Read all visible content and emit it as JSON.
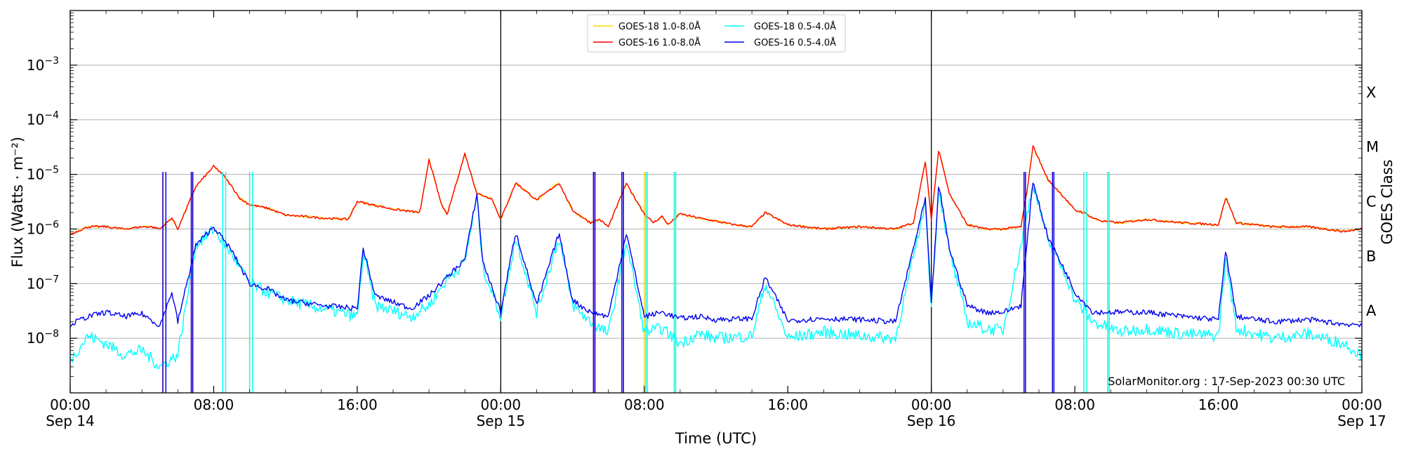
{
  "chart_data": {
    "type": "line",
    "xlabel": "Time (UTC)",
    "ylabel": "Flux (Watts · m⁻²)",
    "y2label": "GOES Class",
    "yscale": "log",
    "xlim": [
      "2023-09-14T00:00",
      "2023-09-17T00:00"
    ],
    "ylim": [
      1e-09,
      0.01
    ],
    "grid": "horizontal",
    "legend_position": "top-center",
    "day_markers": [
      "2023-09-15T00:00",
      "2023-09-16T00:00"
    ],
    "x_ticks": [
      {
        "t": "2023-09-14T00:00",
        "line1": "00:00",
        "line2": "Sep 14"
      },
      {
        "t": "2023-09-14T08:00",
        "line1": "08:00",
        "line2": ""
      },
      {
        "t": "2023-09-14T16:00",
        "line1": "16:00",
        "line2": ""
      },
      {
        "t": "2023-09-15T00:00",
        "line1": "00:00",
        "line2": "Sep 15"
      },
      {
        "t": "2023-09-15T08:00",
        "line1": "08:00",
        "line2": ""
      },
      {
        "t": "2023-09-15T16:00",
        "line1": "16:00",
        "line2": ""
      },
      {
        "t": "2023-09-16T00:00",
        "line1": "00:00",
        "line2": "Sep 16"
      },
      {
        "t": "2023-09-16T08:00",
        "line1": "08:00",
        "line2": ""
      },
      {
        "t": "2023-09-16T16:00",
        "line1": "16:00",
        "line2": ""
      },
      {
        "t": "2023-09-17T00:00",
        "line1": "00:00",
        "line2": "Sep 17"
      }
    ],
    "y_ticks": [
      {
        "value": 1e-08,
        "base": "10",
        "exp": "−8"
      },
      {
        "value": 1e-07,
        "base": "10",
        "exp": "−7"
      },
      {
        "value": 1e-06,
        "base": "10",
        "exp": "−6"
      },
      {
        "value": 1e-05,
        "base": "10",
        "exp": "−5"
      },
      {
        "value": 0.0001,
        "base": "10",
        "exp": "−4"
      },
      {
        "value": 0.001,
        "base": "10",
        "exp": "−3"
      }
    ],
    "goes_classes": [
      {
        "label": "A",
        "min": 1e-08
      },
      {
        "label": "B",
        "min": 1e-07
      },
      {
        "label": "C",
        "min": 1e-06
      },
      {
        "label": "M",
        "min": 1e-05
      },
      {
        "label": "X",
        "min": 0.0001
      }
    ],
    "series": [
      {
        "name": "GOES-18 1.0-8.0Å",
        "color": "#ffd700",
        "x": [
          "2023-09-14T00:00",
          "2023-09-14T01:00",
          "2023-09-14T02:00",
          "2023-09-14T03:00",
          "2023-09-14T04:00",
          "2023-09-14T04:30",
          "2023-09-14T05:00",
          "2023-09-14T05:40",
          "2023-09-14T06:00",
          "2023-09-14T07:00",
          "2023-09-14T08:00",
          "2023-09-14T08:30",
          "2023-09-14T09:00",
          "2023-09-14T09:30",
          "2023-09-14T10:00",
          "2023-09-14T11:00",
          "2023-09-14T12:00",
          "2023-09-14T14:00",
          "2023-09-14T15:30",
          "2023-09-14T16:00",
          "2023-09-14T18:00",
          "2023-09-14T19:30",
          "2023-09-14T20:00",
          "2023-09-14T20:40",
          "2023-09-14T21:00",
          "2023-09-14T22:00",
          "2023-09-14T22:40",
          "2023-09-14T23:30",
          "2023-09-15T00:00",
          "2023-09-15T00:50",
          "2023-09-15T02:00",
          "2023-09-15T03:15",
          "2023-09-15T04:00",
          "2023-09-15T05:00",
          "2023-09-15T05:30",
          "2023-09-15T06:00",
          "2023-09-15T07:00",
          "2023-09-15T08:00",
          "2023-09-15T08:30",
          "2023-09-15T09:00",
          "2023-09-15T09:20",
          "2023-09-15T10:00",
          "2023-09-15T11:00",
          "2023-09-15T13:00",
          "2023-09-15T14:00",
          "2023-09-15T14:45",
          "2023-09-15T16:00",
          "2023-09-15T18:00",
          "2023-09-15T20:00",
          "2023-09-15T22:00",
          "2023-09-15T23:00",
          "2023-09-15T23:40",
          "2023-09-16T00:00",
          "2023-09-16T00:25",
          "2023-09-16T01:00",
          "2023-09-16T02:00",
          "2023-09-16T03:00",
          "2023-09-16T04:00",
          "2023-09-16T05:00",
          "2023-09-16T05:20",
          "2023-09-16T05:40",
          "2023-09-16T06:30",
          "2023-09-16T07:30",
          "2023-09-16T08:00",
          "2023-09-16T08:30",
          "2023-09-16T09:00",
          "2023-09-16T09:30",
          "2023-09-16T10:30",
          "2023-09-16T12:00",
          "2023-09-16T14:00",
          "2023-09-16T16:00",
          "2023-09-16T16:25",
          "2023-09-16T17:00",
          "2023-09-16T19:00",
          "2023-09-16T21:00",
          "2023-09-16T23:00",
          "2023-09-17T00:00"
        ],
        "y": [
          8e-07,
          1.1e-06,
          1.1e-06,
          1e-06,
          1.1e-06,
          1.1e-06,
          1e-06,
          1.6e-06,
          1e-06,
          6e-06,
          1.4e-05,
          1e-05,
          6e-06,
          3.5e-06,
          2.8e-06,
          2.4e-06,
          1.8e-06,
          1.6e-06,
          1.5e-06,
          3.2e-06,
          2.3e-06,
          2e-06,
          1.9e-05,
          3e-06,
          1.8e-06,
          2.4e-05,
          4.5e-06,
          3.6e-06,
          1.5e-06,
          7e-06,
          3.4e-06,
          7e-06,
          2.2e-06,
          1.3e-06,
          1.5e-06,
          1.1e-06,
          6.8e-06,
          1.9e-06,
          1.3e-06,
          1.7e-06,
          1.2e-06,
          1.9e-06,
          1.6e-06,
          1.2e-06,
          1.1e-06,
          2e-06,
          1.2e-06,
          1e-06,
          1.1e-06,
          1e-06,
          1.3e-06,
          1.7e-05,
          1.5e-06,
          2.9e-05,
          4.5e-06,
          1.2e-06,
          1e-06,
          1e-06,
          1.1e-06,
          5e-06,
          3.3e-05,
          8e-06,
          3.5e-06,
          2.2e-06,
          2e-06,
          1.6e-06,
          1.4e-06,
          1.3e-06,
          1.5e-06,
          1.3e-06,
          1.2e-06,
          3.8e-06,
          1.3e-06,
          1.1e-06,
          1.1e-06,
          9e-07,
          1e-06
        ],
        "dropouts": [
          [
            "2023-09-14T10:00",
            "2023-09-14T10:10"
          ],
          [
            "2023-09-15T08:00",
            "2023-09-15T08:10"
          ],
          [
            "2023-09-15T09:40",
            "2023-09-15T09:45"
          ],
          [
            "2023-09-16T08:30",
            "2023-09-16T08:40"
          ],
          [
            "2023-09-16T09:50",
            "2023-09-16T09:55"
          ]
        ]
      },
      {
        "name": "GOES-16 1.0-8.0Å",
        "color": "#ff0000",
        "x": [
          "2023-09-14T00:00",
          "2023-09-14T01:00",
          "2023-09-14T02:00",
          "2023-09-14T03:00",
          "2023-09-14T04:00",
          "2023-09-14T04:30",
          "2023-09-14T05:00",
          "2023-09-14T05:40",
          "2023-09-14T06:00",
          "2023-09-14T07:00",
          "2023-09-14T08:00",
          "2023-09-14T08:30",
          "2023-09-14T09:00",
          "2023-09-14T09:30",
          "2023-09-14T10:00",
          "2023-09-14T11:00",
          "2023-09-14T12:00",
          "2023-09-14T14:00",
          "2023-09-14T15:30",
          "2023-09-14T16:00",
          "2023-09-14T18:00",
          "2023-09-14T19:30",
          "2023-09-14T20:00",
          "2023-09-14T20:40",
          "2023-09-14T21:00",
          "2023-09-14T22:00",
          "2023-09-14T22:40",
          "2023-09-14T23:30",
          "2023-09-15T00:00",
          "2023-09-15T00:50",
          "2023-09-15T02:00",
          "2023-09-15T03:15",
          "2023-09-15T04:00",
          "2023-09-15T05:00",
          "2023-09-15T05:30",
          "2023-09-15T06:00",
          "2023-09-15T07:00",
          "2023-09-15T08:00",
          "2023-09-15T08:30",
          "2023-09-15T09:00",
          "2023-09-15T09:20",
          "2023-09-15T10:00",
          "2023-09-15T11:00",
          "2023-09-15T13:00",
          "2023-09-15T14:00",
          "2023-09-15T14:45",
          "2023-09-15T16:00",
          "2023-09-15T18:00",
          "2023-09-15T20:00",
          "2023-09-15T22:00",
          "2023-09-15T23:00",
          "2023-09-15T23:40",
          "2023-09-16T00:00",
          "2023-09-16T00:25",
          "2023-09-16T01:00",
          "2023-09-16T02:00",
          "2023-09-16T03:00",
          "2023-09-16T04:00",
          "2023-09-16T05:00",
          "2023-09-16T05:20",
          "2023-09-16T05:40",
          "2023-09-16T06:30",
          "2023-09-16T07:30",
          "2023-09-16T08:00",
          "2023-09-16T08:30",
          "2023-09-16T09:00",
          "2023-09-16T09:30",
          "2023-09-16T10:30",
          "2023-09-16T12:00",
          "2023-09-16T14:00",
          "2023-09-16T16:00",
          "2023-09-16T16:25",
          "2023-09-16T17:00",
          "2023-09-16T19:00",
          "2023-09-16T21:00",
          "2023-09-16T23:00",
          "2023-09-17T00:00"
        ],
        "y": [
          8e-07,
          1.1e-06,
          1.1e-06,
          1e-06,
          1.1e-06,
          1.1e-06,
          1e-06,
          1.6e-06,
          1e-06,
          6e-06,
          1.4e-05,
          1e-05,
          6e-06,
          3.5e-06,
          2.8e-06,
          2.4e-06,
          1.8e-06,
          1.6e-06,
          1.5e-06,
          3.2e-06,
          2.3e-06,
          2e-06,
          1.9e-05,
          3e-06,
          1.8e-06,
          2.4e-05,
          4.5e-06,
          3.6e-06,
          1.5e-06,
          7e-06,
          3.4e-06,
          7e-06,
          2.2e-06,
          1.3e-06,
          1.5e-06,
          1.1e-06,
          6.8e-06,
          1.9e-06,
          1.3e-06,
          1.7e-06,
          1.2e-06,
          1.9e-06,
          1.6e-06,
          1.2e-06,
          1.1e-06,
          2e-06,
          1.2e-06,
          1e-06,
          1.1e-06,
          1e-06,
          1.3e-06,
          1.7e-05,
          1.5e-06,
          2.9e-05,
          4.5e-06,
          1.2e-06,
          1e-06,
          1e-06,
          1.1e-06,
          5e-06,
          3.3e-05,
          8e-06,
          3.5e-06,
          2.2e-06,
          2e-06,
          1.6e-06,
          1.4e-06,
          1.3e-06,
          1.5e-06,
          1.3e-06,
          1.2e-06,
          3.8e-06,
          1.3e-06,
          1.1e-06,
          1.1e-06,
          9e-07,
          1e-06
        ],
        "dropouts": [
          [
            "2023-09-14T05:10",
            "2023-09-14T05:20"
          ],
          [
            "2023-09-14T06:45",
            "2023-09-14T06:50"
          ],
          [
            "2023-09-15T05:10",
            "2023-09-15T05:15"
          ],
          [
            "2023-09-15T06:45",
            "2023-09-15T06:50"
          ],
          [
            "2023-09-16T05:10",
            "2023-09-16T05:15"
          ],
          [
            "2023-09-16T06:45",
            "2023-09-16T06:50"
          ]
        ]
      },
      {
        "name": "GOES-18 0.5-4.0Å",
        "color": "#00ffff",
        "x": [
          "2023-09-14T00:00",
          "2023-09-14T01:00",
          "2023-09-14T02:00",
          "2023-09-14T03:00",
          "2023-09-14T04:00",
          "2023-09-14T05:00",
          "2023-09-14T06:00",
          "2023-09-14T07:00",
          "2023-09-14T08:00",
          "2023-09-14T09:00",
          "2023-09-14T10:00",
          "2023-09-14T11:00",
          "2023-09-14T12:00",
          "2023-09-14T14:00",
          "2023-09-14T16:00",
          "2023-09-14T16:20",
          "2023-09-14T17:00",
          "2023-09-14T19:00",
          "2023-09-14T20:00",
          "2023-09-14T21:00",
          "2023-09-14T22:00",
          "2023-09-14T22:40",
          "2023-09-14T23:00",
          "2023-09-15T00:00",
          "2023-09-15T00:50",
          "2023-09-15T02:00",
          "2023-09-15T03:15",
          "2023-09-15T04:00",
          "2023-09-15T05:00",
          "2023-09-15T06:00",
          "2023-09-15T07:00",
          "2023-09-15T08:00",
          "2023-09-15T09:00",
          "2023-09-15T10:00",
          "2023-09-15T11:00",
          "2023-09-15T12:00",
          "2023-09-15T14:00",
          "2023-09-15T14:45",
          "2023-09-15T16:00",
          "2023-09-15T18:00",
          "2023-09-15T20:00",
          "2023-09-15T22:00",
          "2023-09-15T23:40",
          "2023-09-16T00:00",
          "2023-09-16T00:25",
          "2023-09-16T01:00",
          "2023-09-16T02:00",
          "2023-09-16T03:00",
          "2023-09-16T04:00",
          "2023-09-16T05:00",
          "2023-09-16T05:40",
          "2023-09-16T06:30",
          "2023-09-16T07:30",
          "2023-09-16T08:00",
          "2023-09-16T09:00",
          "2023-09-16T10:30",
          "2023-09-16T12:00",
          "2023-09-16T14:00",
          "2023-09-16T16:00",
          "2023-09-16T16:25",
          "2023-09-16T17:00",
          "2023-09-16T19:00",
          "2023-09-16T21:00",
          "2023-09-16T23:00",
          "2023-09-17T00:00"
        ],
        "y": [
          4e-09,
          1.1e-08,
          8e-09,
          5e-09,
          6e-09,
          3e-09,
          5e-09,
          5e-07,
          1e-06,
          3.5e-07,
          1e-07,
          7e-08,
          5e-08,
          3.5e-08,
          2.5e-08,
          3.5e-07,
          4e-08,
          2.5e-08,
          4e-08,
          1.2e-07,
          2.5e-07,
          4e-06,
          2e-07,
          2.5e-08,
          7e-07,
          3e-08,
          7e-07,
          4e-08,
          2e-08,
          1.2e-08,
          6e-07,
          1.3e-08,
          1.5e-08,
          8e-09,
          1.2e-08,
          1e-08,
          1.1e-08,
          1e-07,
          1e-08,
          1.3e-08,
          1.1e-08,
          1e-08,
          3e-06,
          3.5e-08,
          6e-06,
          4e-07,
          2e-08,
          1.5e-08,
          1.4e-08,
          5e-07,
          7e-06,
          6e-07,
          1.4e-07,
          5e-08,
          2e-08,
          1.3e-08,
          1.5e-08,
          1.2e-08,
          1.1e-08,
          3e-07,
          1.5e-08,
          1e-08,
          1.2e-08,
          8e-09,
          5e-09
        ],
        "dropouts": [
          [
            "2023-09-14T08:30",
            "2023-09-14T08:40"
          ],
          [
            "2023-09-14T10:00",
            "2023-09-14T10:10"
          ],
          [
            "2023-09-15T08:05",
            "2023-09-15T08:10"
          ],
          [
            "2023-09-15T09:40",
            "2023-09-15T09:45"
          ],
          [
            "2023-09-16T08:30",
            "2023-09-16T08:40"
          ],
          [
            "2023-09-16T09:50",
            "2023-09-16T09:55"
          ]
        ]
      },
      {
        "name": "GOES-16 0.5-4.0Å",
        "color": "#0000ee",
        "x": [
          "2023-09-14T00:00",
          "2023-09-14T01:00",
          "2023-09-14T02:00",
          "2023-09-14T03:00",
          "2023-09-14T04:00",
          "2023-09-14T05:00",
          "2023-09-14T05:40",
          "2023-09-14T06:00",
          "2023-09-14T07:00",
          "2023-09-14T08:00",
          "2023-09-14T09:00",
          "2023-09-14T10:00",
          "2023-09-14T11:00",
          "2023-09-14T12:00",
          "2023-09-14T14:00",
          "2023-09-14T16:00",
          "2023-09-14T16:20",
          "2023-09-14T17:00",
          "2023-09-14T19:00",
          "2023-09-14T20:00",
          "2023-09-14T21:00",
          "2023-09-14T22:00",
          "2023-09-14T22:40",
          "2023-09-14T23:00",
          "2023-09-15T00:00",
          "2023-09-15T00:50",
          "2023-09-15T02:00",
          "2023-09-15T03:15",
          "2023-09-15T04:00",
          "2023-09-15T05:00",
          "2023-09-15T06:00",
          "2023-09-15T07:00",
          "2023-09-15T08:00",
          "2023-09-15T09:00",
          "2023-09-15T10:00",
          "2023-09-15T11:00",
          "2023-09-15T12:00",
          "2023-09-15T14:00",
          "2023-09-15T14:45",
          "2023-09-15T16:00",
          "2023-09-15T18:00",
          "2023-09-15T20:00",
          "2023-09-15T22:00",
          "2023-09-15T23:40",
          "2023-09-16T00:00",
          "2023-09-16T00:25",
          "2023-09-16T01:00",
          "2023-09-16T02:00",
          "2023-09-16T03:00",
          "2023-09-16T04:00",
          "2023-09-16T05:00",
          "2023-09-16T05:40",
          "2023-09-16T06:30",
          "2023-09-16T07:30",
          "2023-09-16T08:00",
          "2023-09-16T09:00",
          "2023-09-16T10:30",
          "2023-09-16T12:00",
          "2023-09-16T14:00",
          "2023-09-16T16:00",
          "2023-09-16T16:25",
          "2023-09-16T17:00",
          "2023-09-16T19:00",
          "2023-09-16T21:00",
          "2023-09-16T23:00",
          "2023-09-17T00:00"
        ],
        "y": [
          1.8e-08,
          2.5e-08,
          3e-08,
          2.5e-08,
          2.8e-08,
          1.7e-08,
          7e-08,
          2e-08,
          5e-07,
          1.1e-06,
          4e-07,
          1e-07,
          8e-08,
          5e-08,
          4e-08,
          3.5e-08,
          4.5e-07,
          6e-08,
          3.5e-08,
          6e-08,
          1.3e-07,
          2.8e-07,
          4.3e-06,
          2.5e-07,
          3e-08,
          9e-07,
          4e-08,
          8.5e-07,
          5e-08,
          3e-08,
          2.5e-08,
          8.5e-07,
          2.5e-08,
          3e-08,
          2.3e-08,
          2.5e-08,
          2.2e-08,
          2.3e-08,
          1.3e-07,
          2.1e-08,
          2.3e-08,
          2.2e-08,
          2e-08,
          3.5e-06,
          4e-08,
          6.5e-06,
          4.5e-07,
          4e-08,
          3e-08,
          3e-08,
          4e-08,
          7.5e-06,
          7e-07,
          1.6e-07,
          7e-08,
          3e-08,
          3e-08,
          3e-08,
          2.5e-08,
          2.2e-08,
          4e-07,
          2.5e-08,
          2e-08,
          2.2e-08,
          1.8e-08,
          1.8e-08
        ],
        "dropouts": [
          [
            "2023-09-14T05:10",
            "2023-09-14T05:20"
          ],
          [
            "2023-09-14T06:45",
            "2023-09-14T06:50"
          ],
          [
            "2023-09-15T05:10",
            "2023-09-15T05:15"
          ],
          [
            "2023-09-15T06:45",
            "2023-09-15T06:50"
          ],
          [
            "2023-09-16T05:10",
            "2023-09-16T05:15"
          ],
          [
            "2023-09-16T06:45",
            "2023-09-16T06:50"
          ]
        ]
      }
    ],
    "annotation": "SolarMonitor.org : 17-Sep-2023 00:30 UTC"
  }
}
